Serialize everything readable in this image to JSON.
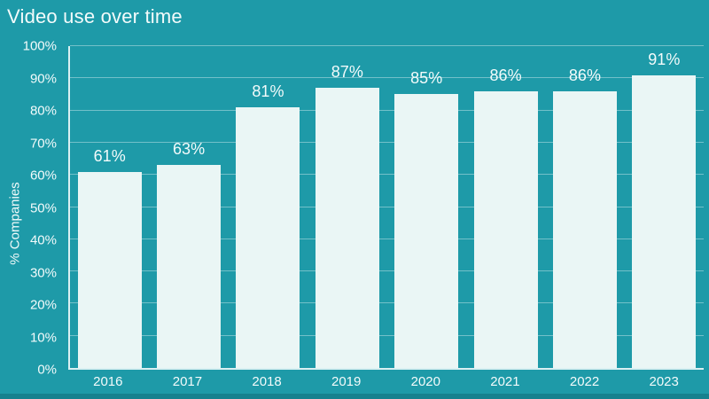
{
  "chart_data": {
    "type": "bar",
    "title": "Video use over time",
    "ylabel": "% Companies",
    "xlabel": "",
    "categories": [
      "2016",
      "2017",
      "2018",
      "2019",
      "2020",
      "2021",
      "2022",
      "2023"
    ],
    "values": [
      61,
      63,
      81,
      87,
      85,
      86,
      86,
      91
    ],
    "value_suffix": "%",
    "ylim": [
      0,
      100
    ],
    "ytick_step": 10,
    "ytick_suffix": "%",
    "grid": true,
    "legend": "none",
    "colors": {
      "background": "#1e9aa8",
      "bar": "#eaf6f5",
      "gridline": "rgba(255,255,255,0.38)",
      "axis": "rgba(238,250,250,0.9)",
      "text": "#f3fbfb",
      "bottom_strip": "#16818e"
    }
  }
}
